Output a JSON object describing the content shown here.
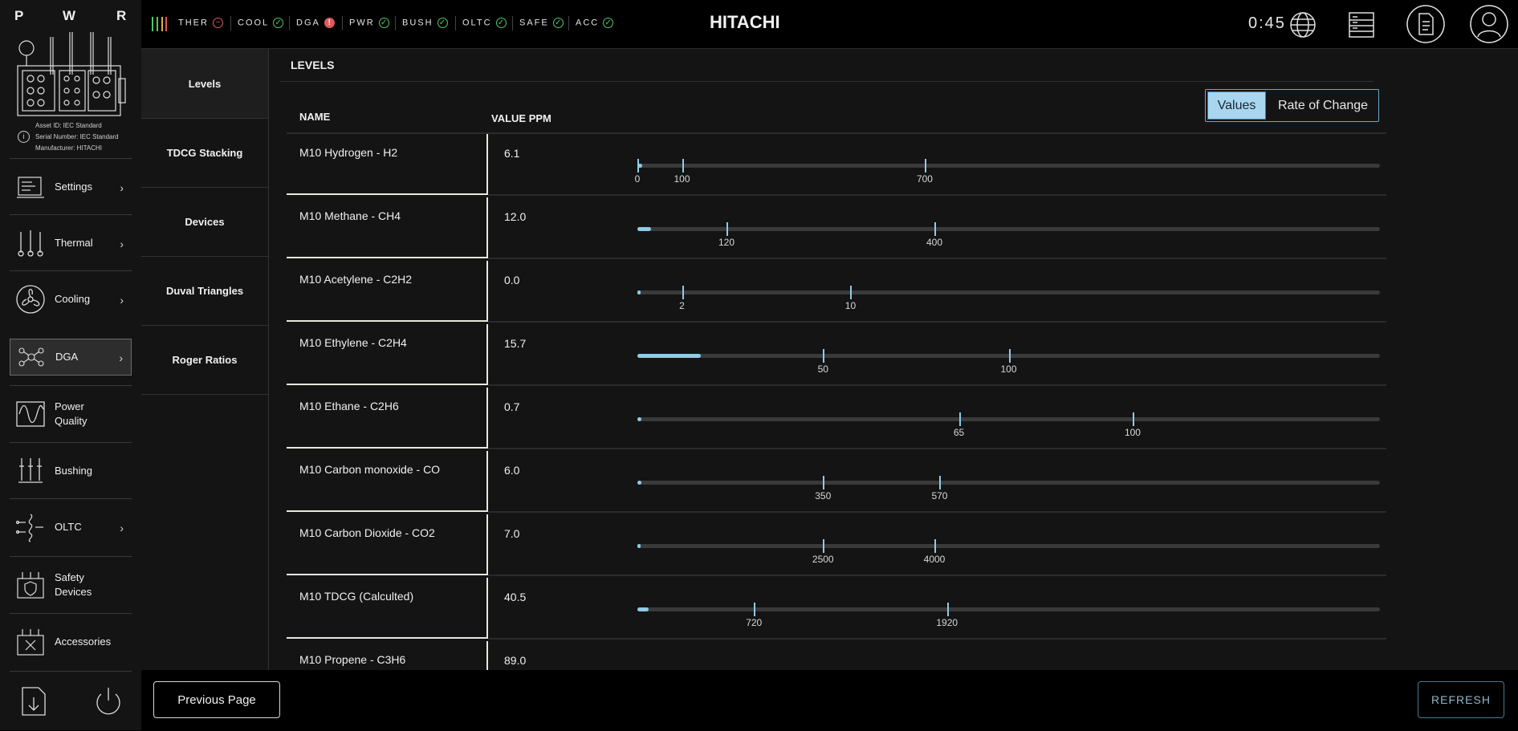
{
  "sidebar": {
    "pwr_letters": [
      "P",
      "W",
      "R"
    ],
    "asset_info": {
      "asset_id": "Asset ID: IEC Standard",
      "serial_number": "Serial Number: IEC Standard",
      "manufacturer": "Manufacturer: HITACHI"
    },
    "items": [
      {
        "label": "Settings",
        "icon": "settings-panel-icon",
        "has_chevron": true
      },
      {
        "label": "Thermal",
        "icon": "thermometer-icon",
        "has_chevron": true
      },
      {
        "label": "Cooling",
        "icon": "fan-icon",
        "has_chevron": true
      },
      {
        "label": "DGA",
        "icon": "molecule-icon",
        "has_chevron": true,
        "active": true
      },
      {
        "label": "Power Quality",
        "icon": "waveform-icon",
        "has_chevron": false
      },
      {
        "label": "Bushing",
        "icon": "bushing-icon",
        "has_chevron": false
      },
      {
        "label": "OLTC",
        "icon": "tap-changer-icon",
        "has_chevron": true
      },
      {
        "label": "Safety Devices",
        "icon": "safety-device-icon",
        "has_chevron": false
      },
      {
        "label": "Accessories",
        "icon": "accessories-icon",
        "has_chevron": false
      }
    ],
    "bottom_icons": [
      "save-export-icon",
      "power-icon"
    ]
  },
  "topbar": {
    "status": [
      {
        "label": "THER",
        "state": "warn",
        "glyph": "−"
      },
      {
        "label": "COOL",
        "state": "ok",
        "glyph": "✓"
      },
      {
        "label": "DGA",
        "state": "alert",
        "glyph": "!"
      },
      {
        "label": "PWR",
        "state": "ok",
        "glyph": "✓"
      },
      {
        "label": "BUSH",
        "state": "ok",
        "glyph": "✓"
      },
      {
        "label": "OLTC",
        "state": "ok",
        "glyph": "✓"
      },
      {
        "label": "SAFE",
        "state": "ok",
        "glyph": "✓"
      },
      {
        "label": "ACC",
        "state": "ok",
        "glyph": "✓"
      }
    ],
    "brand": "HITACHI",
    "timer": "0:45",
    "icons": [
      "globe-icon",
      "server-rack-icon",
      "document-icon",
      "user-profile-icon"
    ]
  },
  "subnav": {
    "items": [
      "Levels",
      "TDCG Stacking",
      "Devices",
      "Duval Triangles",
      "Roger Ratios"
    ],
    "active": 0
  },
  "main": {
    "title": "LEVELS",
    "toggle": {
      "values": "Values",
      "rate": "Rate of Change"
    },
    "columns": {
      "name": "NAME",
      "value": "VALUE PPM"
    },
    "scale_max": 1000,
    "rows": [
      {
        "name": "M10 Hydrogen - H2",
        "value": "6.1",
        "scale_max": 1000,
        "fill": 6.1,
        "ticks": [
          {
            "label": "0",
            "v": 0
          },
          {
            "label": "100",
            "v": 60
          },
          {
            "label": "700",
            "v": 387
          }
        ]
      },
      {
        "name": "M10 Methane - CH4",
        "value": "12.0",
        "scale_max": 1000,
        "fill": 18,
        "ticks": [
          {
            "label": "120",
            "v": 120
          },
          {
            "label": "400",
            "v": 400
          }
        ]
      },
      {
        "name": "M10 Acetylene - C2H2",
        "value": "0.0",
        "scale_max": 1000,
        "fill": 0,
        "ticks": [
          {
            "label": "2",
            "v": 60
          },
          {
            "label": "10",
            "v": 287
          }
        ]
      },
      {
        "name": "M10 Ethylene - C2H4",
        "value": "15.7",
        "scale_max": 1000,
        "fill": 85,
        "ticks": [
          {
            "label": "50",
            "v": 250
          },
          {
            "label": "100",
            "v": 500
          }
        ]
      },
      {
        "name": "M10 Ethane - C2H6",
        "value": "0.7",
        "scale_max": 1000,
        "fill": 5,
        "ticks": [
          {
            "label": "65",
            "v": 433
          },
          {
            "label": "100",
            "v": 667
          }
        ]
      },
      {
        "name": "M10 Carbon monoxide - CO",
        "value": "6.0",
        "scale_max": 1000,
        "fill": 5,
        "ticks": [
          {
            "label": "350",
            "v": 250
          },
          {
            "label": "570",
            "v": 407
          }
        ]
      },
      {
        "name": "M10 Carbon Dioxide - CO2",
        "value": "7.0",
        "scale_max": 1000,
        "fill": 2,
        "ticks": [
          {
            "label": "2500",
            "v": 250
          },
          {
            "label": "4000",
            "v": 400
          }
        ]
      },
      {
        "name": "M10 TDCG (Calculted)",
        "value": "40.5",
        "scale_max": 1000,
        "fill": 15,
        "ticks": [
          {
            "label": "720",
            "v": 157
          },
          {
            "label": "1920",
            "v": 417
          }
        ]
      },
      {
        "name": "M10 Propene - C3H6",
        "value": "89.0",
        "scale_max": 1000,
        "fill": 0,
        "ticks": []
      }
    ]
  },
  "footer": {
    "previous": "Previous Page",
    "refresh": "REFRESH"
  },
  "colors": {
    "accent": "#8fcbe6",
    "ok": "#4cc96a",
    "alert": "#e05a5a",
    "panel": "#141414"
  }
}
